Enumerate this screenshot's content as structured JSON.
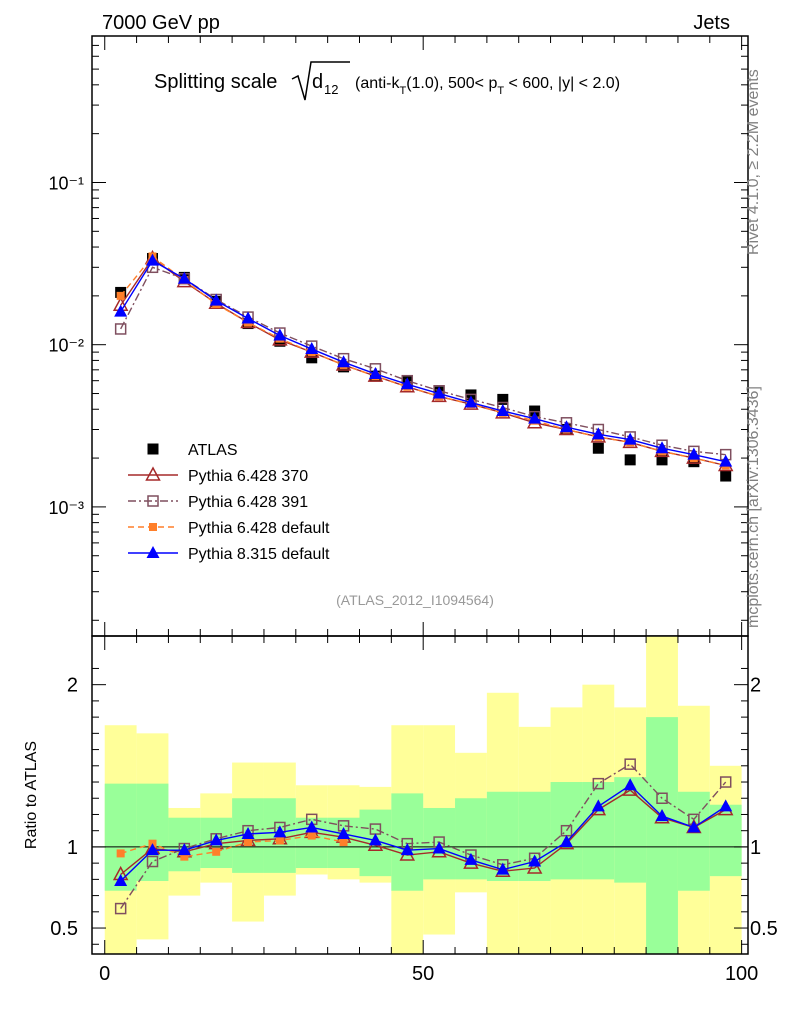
{
  "header": {
    "energy": "7000 GeV pp",
    "process": "Jets"
  },
  "side_labels": {
    "rivet": "Rivet 4.1.0, ≥ 2.2M events",
    "source": "mcplots.cern.ch [arXiv:1306.3436]"
  },
  "chart_data": [
    {
      "name": "main-panel",
      "type": "line",
      "yscale": "log",
      "title_main": "Splitting scale",
      "title_symbol": "d",
      "title_sub": "12",
      "title_rest": "(anti-k_T(1.0), 500< p_T < 600, |y| < 2.0)",
      "title_parts": [
        "(anti-k",
        "T",
        "(1.0), 500< p",
        "T",
        " < 600, |y| < 2.0)"
      ],
      "xlim": [
        -2,
        101
      ],
      "ylim": [
        0.00016,
        0.8
      ],
      "ytick_labels": [
        "10⁻³",
        "10⁻²",
        "10⁻¹"
      ],
      "ytick_values": [
        0.001,
        0.01,
        0.1
      ],
      "annotation": "(ATLAS_2012_I1094564)",
      "x": [
        2.5,
        7.5,
        12.5,
        17.5,
        22.5,
        27.5,
        32.5,
        37.5,
        42.5,
        47.5,
        52.5,
        57.5,
        62.5,
        67.5,
        72.5,
        77.5,
        82.5,
        87.5,
        92.5,
        97.5
      ],
      "series": [
        {
          "name": "ATLAS",
          "legend": "ATLAS",
          "style": "data",
          "color": "#000000",
          "marker": "square-filled",
          "values": [
            0.021,
            0.034,
            0.026,
            0.0185,
            0.0135,
            0.0105,
            0.0083,
            0.0073,
            0.0064,
            0.0059,
            0.0051,
            0.0049,
            0.0046,
            0.0039,
            0.003,
            0.0023,
            0.00195,
            0.00195,
            0.0019,
            0.00155
          ]
        },
        {
          "name": "Pythia 6.428 370",
          "legend": "Pythia 6.428 370",
          "style": "solid",
          "color": "#a52a2a",
          "marker": "triangle-open",
          "values": [
            0.0175,
            0.034,
            0.0245,
            0.018,
            0.0137,
            0.0107,
            0.009,
            0.0075,
            0.0064,
            0.0055,
            0.0048,
            0.0043,
            0.0038,
            0.0033,
            0.003,
            0.0027,
            0.0025,
            0.0022,
            0.002,
            0.0018
          ]
        },
        {
          "name": "Pythia 6.428 391",
          "legend": "Pythia 6.428 391",
          "style": "dashdot",
          "color": "#7f4f5f",
          "marker": "square-open",
          "values": [
            0.0125,
            0.03,
            0.0255,
            0.019,
            0.0148,
            0.0118,
            0.0098,
            0.0082,
            0.0071,
            0.006,
            0.0052,
            0.0046,
            0.0041,
            0.0036,
            0.0033,
            0.003,
            0.0027,
            0.0024,
            0.0022,
            0.0021
          ]
        },
        {
          "name": "Pythia 6.428 default",
          "legend": "Pythia 6.428 default",
          "style": "dashed",
          "color": "#ff7f2a",
          "marker": "square-filled-small",
          "values": [
            0.02,
            0.035,
            0.025,
            0.0178,
            0.0137,
            0.0109,
            0.009,
            0.0075,
            0.0064,
            0.0055,
            0.0048,
            0.0043,
            0.0038,
            0.0034,
            0.003,
            0.0027,
            0.0025,
            0.0022,
            0.002,
            0.0018
          ]
        },
        {
          "name": "Pythia 8.315 default",
          "legend": "Pythia 8.315 default",
          "style": "solid",
          "color": "#0000ff",
          "marker": "triangle-filled",
          "values": [
            0.016,
            0.033,
            0.0255,
            0.0187,
            0.0145,
            0.0114,
            0.0094,
            0.0078,
            0.0066,
            0.0057,
            0.005,
            0.0044,
            0.0039,
            0.0035,
            0.0031,
            0.0028,
            0.0026,
            0.0023,
            0.0021,
            0.0019
          ]
        }
      ]
    },
    {
      "name": "ratio-panel",
      "type": "line",
      "ylabel": "Ratio to ATLAS",
      "xlim": [
        -2,
        101
      ],
      "ylim": [
        0.34,
        2.3
      ],
      "ytick_values": [
        0.5,
        1,
        2
      ],
      "ytick_labels": [
        "0.5",
        "1",
        "2"
      ],
      "xtick_values": [
        0,
        50,
        100
      ],
      "xtick_labels": [
        "0",
        "50",
        "100"
      ],
      "x": [
        2.5,
        7.5,
        12.5,
        17.5,
        22.5,
        27.5,
        32.5,
        37.5,
        42.5,
        47.5,
        52.5,
        57.5,
        62.5,
        67.5,
        72.5,
        77.5,
        82.5,
        87.5,
        92.5,
        97.5
      ],
      "bin_edges": [
        0,
        5,
        10,
        15,
        20,
        25,
        30,
        35,
        40,
        45,
        50,
        55,
        60,
        65,
        70,
        75,
        80,
        85,
        90,
        95,
        100
      ],
      "band_inner": [
        [
          0.73,
          1.39
        ],
        [
          0.79,
          1.39
        ],
        [
          0.85,
          1.18
        ],
        [
          0.87,
          1.18
        ],
        [
          0.84,
          1.3
        ],
        [
          0.84,
          1.3
        ],
        [
          0.87,
          1.18
        ],
        [
          0.87,
          1.18
        ],
        [
          0.82,
          1.23
        ],
        [
          0.73,
          1.33
        ],
        [
          0.8,
          1.24
        ],
        [
          0.8,
          1.3
        ],
        [
          0.79,
          1.34
        ],
        [
          0.79,
          1.34
        ],
        [
          0.8,
          1.4
        ],
        [
          0.8,
          1.4
        ],
        [
          0.78,
          1.43
        ],
        [
          0.34,
          1.8
        ],
        [
          0.73,
          1.34
        ],
        [
          0.82,
          1.26
        ]
      ],
      "band_outer": [
        [
          0.34,
          1.75
        ],
        [
          0.43,
          1.7
        ],
        [
          0.7,
          1.24
        ],
        [
          0.78,
          1.33
        ],
        [
          0.54,
          1.52
        ],
        [
          0.7,
          1.52
        ],
        [
          0.83,
          1.38
        ],
        [
          0.8,
          1.38
        ],
        [
          0.78,
          1.37
        ],
        [
          0.34,
          1.75
        ],
        [
          0.46,
          1.75
        ],
        [
          0.72,
          1.58
        ],
        [
          0.34,
          1.95
        ],
        [
          0.34,
          1.74
        ],
        [
          0.34,
          1.86
        ],
        [
          0.34,
          2.0
        ],
        [
          0.34,
          1.86
        ],
        [
          0.34,
          2.4
        ],
        [
          0.34,
          1.87
        ],
        [
          0.34,
          1.5
        ]
      ],
      "series": [
        {
          "name": "Pythia 6.428 370",
          "color": "#a52a2a",
          "style": "solid",
          "marker": "triangle-open",
          "values": [
            0.83,
            0.99,
            0.97,
            1.02,
            1.04,
            1.05,
            1.09,
            1.06,
            1.01,
            0.95,
            0.97,
            0.9,
            0.85,
            0.87,
            1.02,
            1.23,
            1.35,
            1.18,
            1.12,
            1.23
          ]
        },
        {
          "name": "Pythia 6.428 391",
          "color": "#7f4f5f",
          "style": "dashdot",
          "marker": "square-open",
          "values": [
            0.62,
            0.91,
            0.99,
            1.05,
            1.1,
            1.12,
            1.17,
            1.13,
            1.11,
            1.02,
            1.03,
            0.95,
            0.89,
            0.93,
            1.1,
            1.39,
            1.51,
            1.3,
            1.17,
            1.4
          ]
        },
        {
          "name": "Pythia 6.428 default",
          "color": "#ff7f2a",
          "style": "dashed",
          "marker": "square-filled-small",
          "values": [
            0.96,
            1.02,
            0.94,
            0.97,
            1.03,
            1.04,
            1.07,
            1.03,
            null,
            null,
            null,
            null,
            null,
            null,
            null,
            null,
            null,
            null,
            null,
            null
          ]
        },
        {
          "name": "Pythia 8.315 default",
          "color": "#0000ff",
          "style": "solid",
          "marker": "triangle-filled",
          "values": [
            0.79,
            0.98,
            0.98,
            1.04,
            1.08,
            1.09,
            1.12,
            1.08,
            1.04,
            0.98,
            0.99,
            0.92,
            0.86,
            0.91,
            1.03,
            1.25,
            1.38,
            1.19,
            1.12,
            1.25
          ]
        }
      ]
    }
  ]
}
